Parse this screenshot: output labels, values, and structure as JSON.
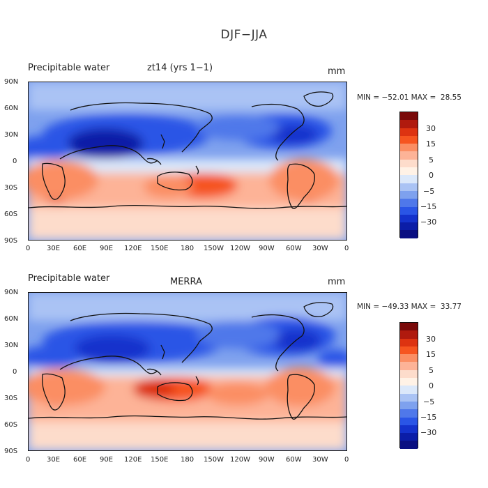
{
  "page_title": "DJF−JJA",
  "panels": [
    {
      "variable_label": "Precipitable water",
      "source_label": "zt14 (yrs 1−1)",
      "units": "mm",
      "minmax": "MIN = −52.01 MAX =  28.55"
    },
    {
      "variable_label": "Precipitable water",
      "source_label": "MERRA",
      "units": "mm",
      "minmax": "MIN = −49.33 MAX =  33.77"
    }
  ],
  "lat_labels": [
    "90N",
    "60N",
    "30N",
    "0",
    "30S",
    "60S",
    "90S"
  ],
  "lon_labels": [
    "0",
    "30E",
    "60E",
    "90E",
    "120E",
    "150E",
    "180",
    "150W",
    "120W",
    "90W",
    "60W",
    "30W",
    "0"
  ],
  "colorbar_labels": [
    "30",
    "15",
    "5",
    "0",
    "−5",
    "−15",
    "−30"
  ],
  "colorbar_colors": [
    "#7a0a0a",
    "#b01a0e",
    "#dd3311",
    "#f65520",
    "#fb8e63",
    "#fdb397",
    "#fddccb",
    "#fff2e6",
    "#dbe8fa",
    "#aac3f4",
    "#7ea1ee",
    "#4f78ea",
    "#2a55e6",
    "#1432cc",
    "#0b1da7",
    "#0a0f82"
  ]
}
